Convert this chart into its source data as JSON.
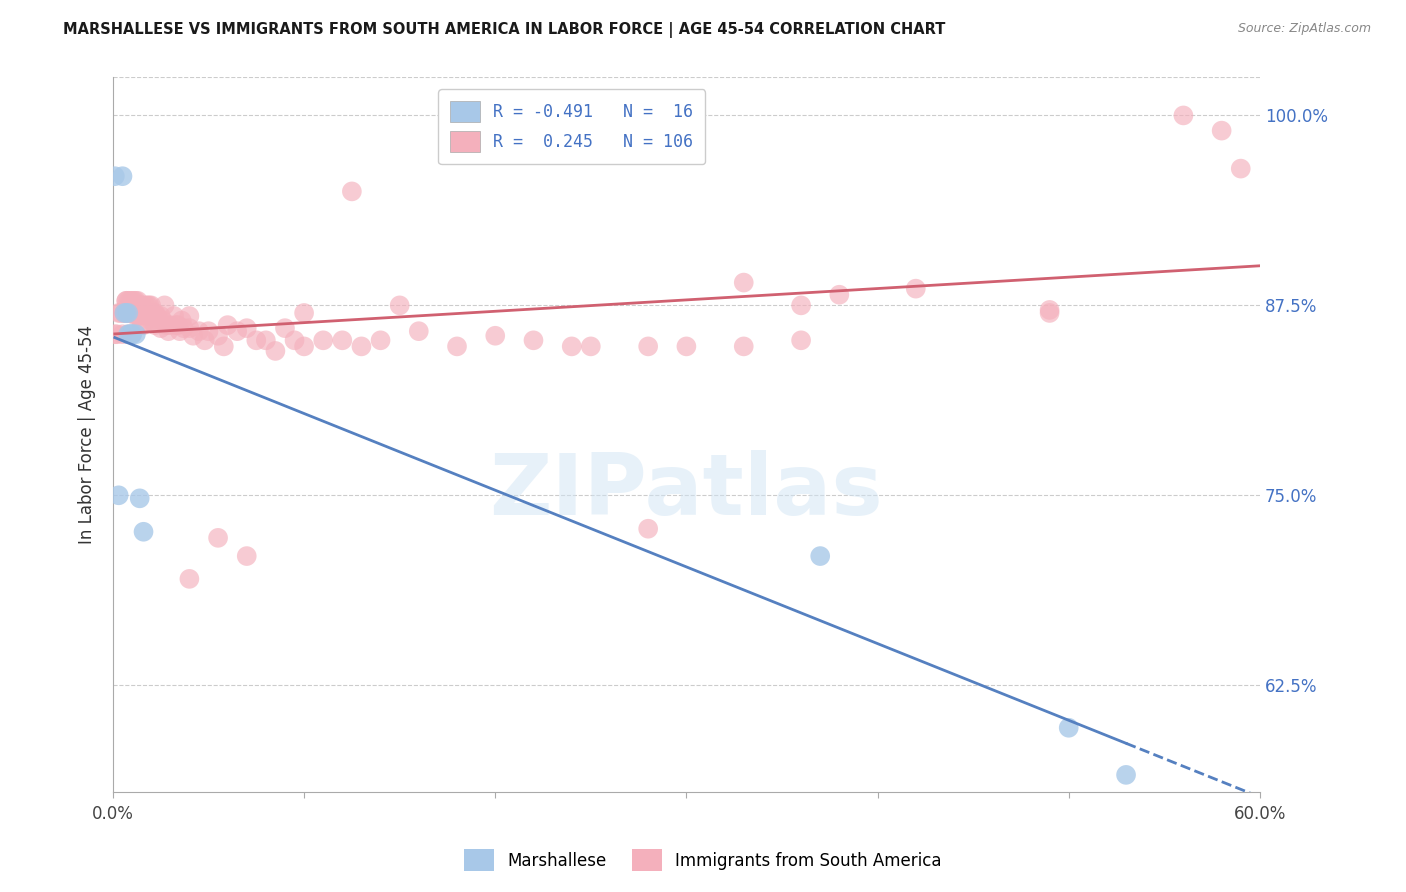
{
  "title": "MARSHALLESE VS IMMIGRANTS FROM SOUTH AMERICA IN LABOR FORCE | AGE 45-54 CORRELATION CHART",
  "source": "Source: ZipAtlas.com",
  "ylabel": "In Labor Force | Age 45-54",
  "xlim": [
    0.0,
    0.6
  ],
  "ylim": [
    0.555,
    1.025
  ],
  "xticks": [
    0.0,
    0.1,
    0.2,
    0.3,
    0.4,
    0.5,
    0.6
  ],
  "xticklabels": [
    "0.0%",
    "",
    "",
    "",
    "",
    "",
    "60.0%"
  ],
  "yticks_right": [
    0.625,
    0.75,
    0.875,
    1.0
  ],
  "ytick_right_labels": [
    "62.5%",
    "75.0%",
    "87.5%",
    "100.0%"
  ],
  "blue_R": -0.491,
  "blue_N": 16,
  "pink_R": 0.245,
  "pink_N": 106,
  "blue_color": "#a8c8e8",
  "pink_color": "#f4b0bc",
  "blue_line_color": "#5580c0",
  "pink_line_color": "#d06070",
  "blue_scatter_x": [
    0.001,
    0.003,
    0.005,
    0.006,
    0.007,
    0.008,
    0.008,
    0.009,
    0.01,
    0.01,
    0.012,
    0.014,
    0.016,
    0.37,
    0.5,
    0.53
  ],
  "blue_scatter_y": [
    0.96,
    0.75,
    0.96,
    0.87,
    0.87,
    0.87,
    0.856,
    0.856,
    0.856,
    0.856,
    0.856,
    0.748,
    0.726,
    0.71,
    0.597,
    0.566
  ],
  "pink_scatter_x": [
    0.001,
    0.002,
    0.003,
    0.004,
    0.005,
    0.006,
    0.006,
    0.007,
    0.007,
    0.007,
    0.008,
    0.008,
    0.008,
    0.009,
    0.009,
    0.009,
    0.01,
    0.01,
    0.01,
    0.011,
    0.011,
    0.011,
    0.012,
    0.012,
    0.012,
    0.013,
    0.013,
    0.013,
    0.014,
    0.014,
    0.015,
    0.015,
    0.015,
    0.016,
    0.016,
    0.017,
    0.018,
    0.018,
    0.019,
    0.019,
    0.02,
    0.02,
    0.021,
    0.022,
    0.022,
    0.023,
    0.024,
    0.025,
    0.025,
    0.026,
    0.027,
    0.028,
    0.029,
    0.03,
    0.032,
    0.033,
    0.034,
    0.035,
    0.036,
    0.037,
    0.04,
    0.04,
    0.042,
    0.045,
    0.048,
    0.05,
    0.055,
    0.058,
    0.06,
    0.065,
    0.07,
    0.075,
    0.08,
    0.085,
    0.09,
    0.095,
    0.1,
    0.11,
    0.12,
    0.13,
    0.14,
    0.16,
    0.18,
    0.2,
    0.22,
    0.24,
    0.28,
    0.3,
    0.33,
    0.36,
    0.04,
    0.055,
    0.07,
    0.1,
    0.125,
    0.15,
    0.25,
    0.28,
    0.38,
    0.42,
    0.49,
    0.56,
    0.58,
    0.36,
    0.49,
    0.33,
    0.59
  ],
  "pink_scatter_y": [
    0.856,
    0.856,
    0.87,
    0.87,
    0.856,
    0.87,
    0.87,
    0.878,
    0.878,
    0.87,
    0.878,
    0.87,
    0.856,
    0.878,
    0.875,
    0.87,
    0.878,
    0.875,
    0.87,
    0.878,
    0.875,
    0.87,
    0.878,
    0.875,
    0.868,
    0.878,
    0.875,
    0.868,
    0.875,
    0.868,
    0.875,
    0.87,
    0.862,
    0.87,
    0.862,
    0.875,
    0.875,
    0.868,
    0.875,
    0.868,
    0.875,
    0.865,
    0.87,
    0.87,
    0.862,
    0.868,
    0.865,
    0.868,
    0.86,
    0.865,
    0.875,
    0.862,
    0.858,
    0.862,
    0.868,
    0.862,
    0.862,
    0.858,
    0.865,
    0.86,
    0.868,
    0.86,
    0.855,
    0.858,
    0.852,
    0.858,
    0.855,
    0.848,
    0.862,
    0.858,
    0.86,
    0.852,
    0.852,
    0.845,
    0.86,
    0.852,
    0.848,
    0.852,
    0.852,
    0.848,
    0.852,
    0.858,
    0.848,
    0.855,
    0.852,
    0.848,
    0.848,
    0.848,
    0.848,
    0.852,
    0.695,
    0.722,
    0.71,
    0.87,
    0.95,
    0.875,
    0.848,
    0.728,
    0.882,
    0.886,
    0.872,
    1.0,
    0.99,
    0.875,
    0.87,
    0.89,
    0.965
  ],
  "watermark_text": "ZIPatlas",
  "legend_blue_label": "Marshallese",
  "legend_pink_label": "Immigrants from South America",
  "grid_color": "#cccccc",
  "background_color": "#ffffff",
  "blue_line_x_start": 0.001,
  "blue_line_x_solid_end": 0.53,
  "blue_line_x_dash_end": 0.6,
  "pink_line_x_start": 0.001,
  "pink_line_x_end": 0.6
}
